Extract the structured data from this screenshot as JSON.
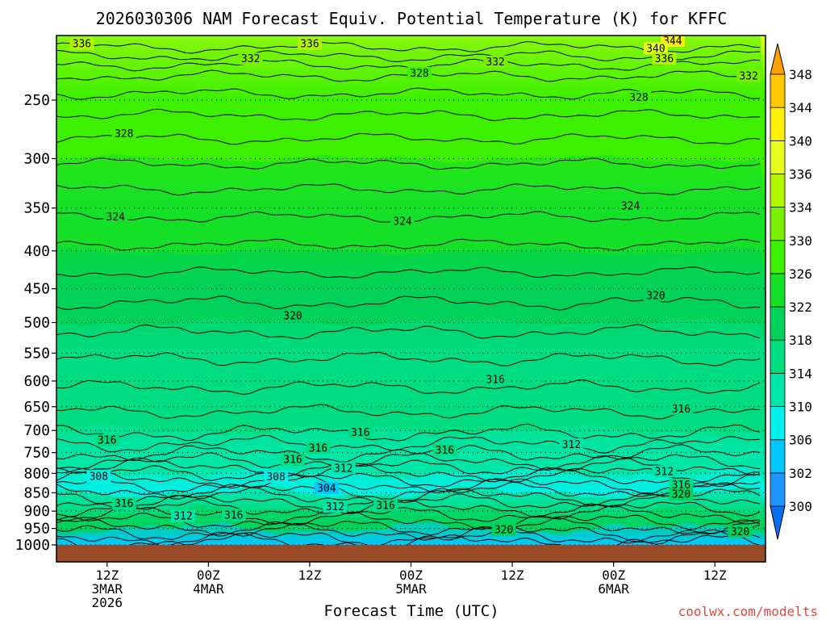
{
  "chart_data": {
    "type": "heatmap",
    "title": "2026030306 NAM Forecast Equiv. Potential Temperature (K) for KFFC",
    "xlabel": "Forecast Time (UTC)",
    "ylabel": "",
    "credit": "coolwx.com/modelts",
    "y_axis": {
      "scale": "log-pressure",
      "range": [
        1000,
        200
      ],
      "ticks": [
        250,
        300,
        350,
        400,
        450,
        500,
        550,
        600,
        650,
        700,
        750,
        800,
        850,
        900,
        950,
        1000
      ],
      "tick_labels": [
        "250",
        "300",
        "350",
        "400",
        "450",
        "500",
        "550",
        "600",
        "650",
        "700",
        "750",
        "800",
        "850",
        "900",
        "950",
        "1000"
      ]
    },
    "x_axis": {
      "range_hours": [
        6,
        90
      ],
      "ticks": [
        {
          "hour": 12,
          "lines": [
            "12Z",
            "3MAR",
            "2026"
          ]
        },
        {
          "hour": 24,
          "lines": [
            "00Z",
            "4MAR"
          ]
        },
        {
          "hour": 36,
          "lines": [
            "12Z"
          ]
        },
        {
          "hour": 48,
          "lines": [
            "00Z",
            "5MAR"
          ]
        },
        {
          "hour": 60,
          "lines": [
            "12Z"
          ]
        },
        {
          "hour": 72,
          "lines": [
            "00Z",
            "6MAR"
          ]
        },
        {
          "hour": 84,
          "lines": [
            "12Z"
          ]
        }
      ]
    },
    "colorbar": {
      "levels": [
        300,
        302,
        306,
        310,
        314,
        318,
        322,
        326,
        330,
        334,
        336,
        340,
        344,
        348
      ],
      "labels": [
        "300",
        "302",
        "306",
        "310",
        "314",
        "318",
        "322",
        "326",
        "330",
        "334",
        "336",
        "340",
        "344",
        "348"
      ],
      "colors": [
        "#0a6ef0",
        "#1e96ff",
        "#00c8ff",
        "#00f0ea",
        "#00e6a8",
        "#00dc80",
        "#00d25a",
        "#14e028",
        "#3cf000",
        "#7af000",
        "#b4f500",
        "#e6ff1e",
        "#fff00a",
        "#ffc800",
        "#ffa000"
      ]
    },
    "profile": [
      {
        "pressure": 1000,
        "theta_e": 304
      },
      {
        "pressure": 950,
        "theta_e": 318
      },
      {
        "pressure": 900,
        "theta_e": 314
      },
      {
        "pressure": 850,
        "theta_e": 308
      },
      {
        "pressure": 800,
        "theta_e": 310
      },
      {
        "pressure": 750,
        "theta_e": 312
      },
      {
        "pressure": 700,
        "theta_e": 314
      },
      {
        "pressure": 650,
        "theta_e": 315
      },
      {
        "pressure": 600,
        "theta_e": 316
      },
      {
        "pressure": 550,
        "theta_e": 317
      },
      {
        "pressure": 500,
        "theta_e": 318
      },
      {
        "pressure": 450,
        "theta_e": 320
      },
      {
        "pressure": 400,
        "theta_e": 322
      },
      {
        "pressure": 350,
        "theta_e": 324
      },
      {
        "pressure": 300,
        "theta_e": 326
      },
      {
        "pressure": 250,
        "theta_e": 328
      },
      {
        "pressure": 200,
        "theta_e": 338
      }
    ],
    "contour_labels": [
      {
        "text": "336",
        "hour": 9,
        "pressure": 210
      },
      {
        "text": "336",
        "hour": 36,
        "pressure": 210
      },
      {
        "text": "344",
        "hour": 79,
        "pressure": 208
      },
      {
        "text": "340",
        "hour": 77,
        "pressure": 213
      },
      {
        "text": "332",
        "hour": 29,
        "pressure": 220
      },
      {
        "text": "332",
        "hour": 58,
        "pressure": 222
      },
      {
        "text": "336",
        "hour": 78,
        "pressure": 220
      },
      {
        "text": "328",
        "hour": 49,
        "pressure": 230
      },
      {
        "text": "332",
        "hour": 88,
        "pressure": 232
      },
      {
        "text": "328",
        "hour": 75,
        "pressure": 248
      },
      {
        "text": "328",
        "hour": 14,
        "pressure": 278
      },
      {
        "text": "324",
        "hour": 74,
        "pressure": 348
      },
      {
        "text": "324",
        "hour": 13,
        "pressure": 360
      },
      {
        "text": "324",
        "hour": 47,
        "pressure": 365
      },
      {
        "text": "320",
        "hour": 77,
        "pressure": 460
      },
      {
        "text": "320",
        "hour": 34,
        "pressure": 490
      },
      {
        "text": "316",
        "hour": 58,
        "pressure": 598
      },
      {
        "text": "316",
        "hour": 80,
        "pressure": 655
      },
      {
        "text": "316",
        "hour": 42,
        "pressure": 705
      },
      {
        "text": "316",
        "hour": 12,
        "pressure": 722
      },
      {
        "text": "316",
        "hour": 37,
        "pressure": 740
      },
      {
        "text": "316",
        "hour": 52,
        "pressure": 745
      },
      {
        "text": "312",
        "hour": 67,
        "pressure": 732
      },
      {
        "text": "316",
        "hour": 34,
        "pressure": 767
      },
      {
        "text": "312",
        "hour": 40,
        "pressure": 788
      },
      {
        "text": "312",
        "hour": 78,
        "pressure": 796
      },
      {
        "text": "308",
        "hour": 11,
        "pressure": 808
      },
      {
        "text": "308",
        "hour": 32,
        "pressure": 810
      },
      {
        "text": "304",
        "hour": 38,
        "pressure": 838
      },
      {
        "text": "316",
        "hour": 80,
        "pressure": 830
      },
      {
        "text": "320",
        "hour": 80,
        "pressure": 855
      },
      {
        "text": "316",
        "hour": 14,
        "pressure": 880
      },
      {
        "text": "312",
        "hour": 39,
        "pressure": 888
      },
      {
        "text": "316",
        "hour": 45,
        "pressure": 885
      },
      {
        "text": "312",
        "hour": 21,
        "pressure": 915
      },
      {
        "text": "316",
        "hour": 27,
        "pressure": 912
      },
      {
        "text": "320",
        "hour": 59,
        "pressure": 955
      },
      {
        "text": "320",
        "hour": 87,
        "pressure": 960
      }
    ]
  }
}
